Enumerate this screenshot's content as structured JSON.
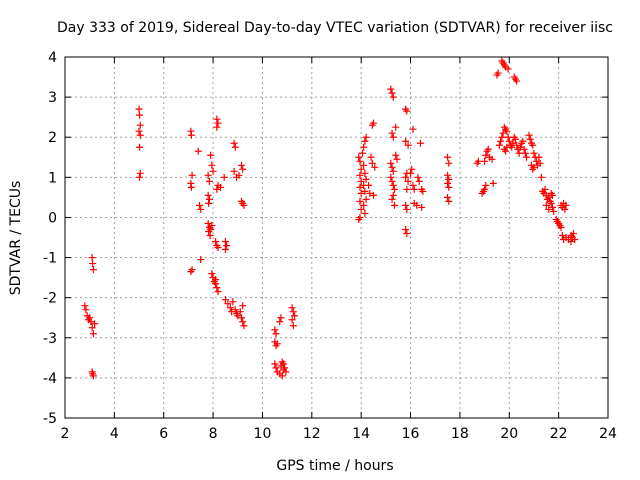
{
  "chart_data": {
    "type": "scatter",
    "title": "Day 333 of 2019, Sidereal Day-to-day VTEC variation (SDTVAR) for receiver iisc",
    "xlabel": "GPS time / hours",
    "ylabel": "SDTVAR / TECUs",
    "xlim": [
      2,
      24
    ],
    "ylim": [
      -5,
      4
    ],
    "xticks": [
      2,
      4,
      6,
      8,
      10,
      12,
      14,
      16,
      18,
      20,
      22,
      24
    ],
    "yticks": [
      -5,
      -4,
      -3,
      -2,
      -1,
      0,
      1,
      2,
      3,
      4
    ],
    "grid": true,
    "marker": "+",
    "series": [
      {
        "name": "SDTVAR",
        "color": "#ff0000",
        "points": [
          [
            2.8,
            -2.2
          ],
          [
            2.85,
            -2.3
          ],
          [
            2.9,
            -2.45
          ],
          [
            2.95,
            -2.55
          ],
          [
            3.0,
            -2.5
          ],
          [
            3.05,
            -2.6
          ],
          [
            3.1,
            -2.75
          ],
          [
            3.15,
            -2.9
          ],
          [
            3.2,
            -2.65
          ],
          [
            3.1,
            -1.0
          ],
          [
            3.12,
            -1.15
          ],
          [
            3.15,
            -1.3
          ],
          [
            3.1,
            -3.85
          ],
          [
            3.12,
            -3.9
          ],
          [
            3.15,
            -3.95
          ],
          [
            5.0,
            2.7
          ],
          [
            5.02,
            2.55
          ],
          [
            5.05,
            2.3
          ],
          [
            5.0,
            2.15
          ],
          [
            5.05,
            2.05
          ],
          [
            5.02,
            1.75
          ],
          [
            5.05,
            1.1
          ],
          [
            5.02,
            1.0
          ],
          [
            7.1,
            2.15
          ],
          [
            7.12,
            2.05
          ],
          [
            7.15,
            1.05
          ],
          [
            7.1,
            0.85
          ],
          [
            7.12,
            0.75
          ],
          [
            7.15,
            -1.3
          ],
          [
            7.1,
            -1.35
          ],
          [
            7.4,
            1.65
          ],
          [
            7.45,
            0.3
          ],
          [
            7.5,
            0.2
          ],
          [
            7.5,
            -1.05
          ],
          [
            7.8,
            1.05
          ],
          [
            7.85,
            0.9
          ],
          [
            7.8,
            0.55
          ],
          [
            7.85,
            0.45
          ],
          [
            7.82,
            0.35
          ],
          [
            7.8,
            -0.15
          ],
          [
            7.85,
            -0.25
          ],
          [
            7.82,
            -0.35
          ],
          [
            7.88,
            -0.45
          ],
          [
            7.9,
            -0.3
          ],
          [
            7.95,
            -0.2
          ],
          [
            7.9,
            1.55
          ],
          [
            7.95,
            1.3
          ],
          [
            8.0,
            1.15
          ],
          [
            7.95,
            -1.4
          ],
          [
            8.0,
            -1.5
          ],
          [
            8.05,
            -1.6
          ],
          [
            8.1,
            -0.6
          ],
          [
            8.15,
            -0.7
          ],
          [
            8.2,
            -0.75
          ],
          [
            8.1,
            -1.65
          ],
          [
            8.15,
            -1.75
          ],
          [
            8.2,
            -1.85
          ],
          [
            8.1,
            -1.55
          ],
          [
            8.15,
            2.45
          ],
          [
            8.2,
            2.35
          ],
          [
            8.15,
            2.25
          ],
          [
            8.2,
            0.8
          ],
          [
            8.15,
            0.7
          ],
          [
            8.3,
            0.75
          ],
          [
            8.45,
            1.0
          ],
          [
            8.5,
            -0.6
          ],
          [
            8.55,
            -0.7
          ],
          [
            8.5,
            -0.8
          ],
          [
            8.5,
            -2.05
          ],
          [
            8.6,
            -2.15
          ],
          [
            8.7,
            -2.25
          ],
          [
            8.75,
            -2.35
          ],
          [
            8.8,
            -2.1
          ],
          [
            8.85,
            1.85
          ],
          [
            8.9,
            1.75
          ],
          [
            8.85,
            1.15
          ],
          [
            8.95,
            1.0
          ],
          [
            9.05,
            1.05
          ],
          [
            8.9,
            -2.3
          ],
          [
            8.95,
            -2.4
          ],
          [
            9.0,
            -2.45
          ],
          [
            9.1,
            -2.35
          ],
          [
            9.15,
            -2.5
          ],
          [
            9.2,
            -2.6
          ],
          [
            9.25,
            -2.7
          ],
          [
            9.2,
            -2.2
          ],
          [
            9.15,
            1.3
          ],
          [
            9.2,
            1.2
          ],
          [
            9.15,
            0.4
          ],
          [
            9.2,
            0.35
          ],
          [
            9.25,
            0.3
          ],
          [
            10.5,
            -2.8
          ],
          [
            10.55,
            -2.9
          ],
          [
            10.5,
            -3.1
          ],
          [
            10.55,
            -3.2
          ],
          [
            10.6,
            -3.15
          ],
          [
            10.5,
            -3.65
          ],
          [
            10.55,
            -3.75
          ],
          [
            10.6,
            -3.85
          ],
          [
            10.7,
            -3.9
          ],
          [
            10.8,
            -3.95
          ],
          [
            10.85,
            -3.8
          ],
          [
            10.75,
            -3.7
          ],
          [
            10.9,
            -3.75
          ],
          [
            10.95,
            -3.85
          ],
          [
            10.7,
            -2.6
          ],
          [
            10.75,
            -2.5
          ],
          [
            10.8,
            -3.6
          ],
          [
            10.85,
            -3.65
          ],
          [
            11.2,
            -2.25
          ],
          [
            11.25,
            -2.35
          ],
          [
            11.3,
            -2.45
          ],
          [
            11.2,
            -2.55
          ],
          [
            11.25,
            -2.7
          ],
          [
            13.9,
            1.5
          ],
          [
            13.95,
            1.4
          ],
          [
            14.0,
            1.2
          ],
          [
            13.95,
            1.05
          ],
          [
            14.0,
            0.9
          ],
          [
            13.95,
            0.75
          ],
          [
            14.0,
            0.6
          ],
          [
            13.95,
            0.4
          ],
          [
            14.0,
            0.2
          ],
          [
            13.95,
            0.0
          ],
          [
            13.9,
            -0.05
          ],
          [
            14.05,
            1.6
          ],
          [
            14.1,
            1.75
          ],
          [
            14.15,
            1.9
          ],
          [
            14.2,
            2.0
          ],
          [
            14.1,
            1.3
          ],
          [
            14.15,
            1.1
          ],
          [
            14.2,
            0.95
          ],
          [
            14.1,
            0.8
          ],
          [
            14.15,
            0.65
          ],
          [
            14.2,
            0.45
          ],
          [
            14.1,
            0.3
          ],
          [
            14.15,
            0.1
          ],
          [
            14.3,
            0.8
          ],
          [
            14.35,
            0.6
          ],
          [
            14.4,
            1.5
          ],
          [
            14.45,
            1.35
          ],
          [
            14.5,
            2.35
          ],
          [
            14.45,
            2.3
          ],
          [
            14.55,
            1.25
          ],
          [
            14.5,
            0.55
          ],
          [
            15.2,
            3.2
          ],
          [
            15.25,
            3.1
          ],
          [
            15.3,
            3.0
          ],
          [
            15.25,
            2.1
          ],
          [
            15.3,
            2.0
          ],
          [
            15.2,
            1.35
          ],
          [
            15.25,
            1.25
          ],
          [
            15.3,
            1.15
          ],
          [
            15.2,
            1.0
          ],
          [
            15.25,
            0.9
          ],
          [
            15.3,
            0.8
          ],
          [
            15.35,
            0.7
          ],
          [
            15.3,
            0.55
          ],
          [
            15.25,
            0.45
          ],
          [
            15.35,
            0.3
          ],
          [
            15.4,
            1.55
          ],
          [
            15.45,
            1.45
          ],
          [
            15.4,
            2.25
          ],
          [
            15.8,
            2.7
          ],
          [
            15.85,
            2.65
          ],
          [
            15.8,
            1.9
          ],
          [
            15.9,
            1.8
          ],
          [
            15.85,
            1.1
          ],
          [
            15.8,
            1.0
          ],
          [
            15.9,
            0.9
          ],
          [
            15.85,
            0.7
          ],
          [
            15.8,
            0.3
          ],
          [
            15.85,
            0.2
          ],
          [
            15.8,
            -0.3
          ],
          [
            15.85,
            -0.4
          ],
          [
            16.0,
            1.1
          ],
          [
            16.05,
            1.2
          ],
          [
            16.1,
            2.2
          ],
          [
            16.1,
            0.8
          ],
          [
            16.15,
            0.7
          ],
          [
            16.15,
            0.35
          ],
          [
            16.25,
            0.3
          ],
          [
            16.3,
            1.0
          ],
          [
            16.35,
            0.9
          ],
          [
            16.4,
            1.85
          ],
          [
            16.45,
            0.7
          ],
          [
            16.5,
            0.65
          ],
          [
            16.45,
            0.25
          ],
          [
            17.5,
            1.5
          ],
          [
            17.55,
            1.35
          ],
          [
            17.5,
            1.05
          ],
          [
            17.55,
            0.95
          ],
          [
            17.5,
            0.85
          ],
          [
            17.55,
            0.75
          ],
          [
            17.5,
            0.5
          ],
          [
            17.55,
            0.4
          ],
          [
            18.7,
            1.35
          ],
          [
            18.75,
            1.4
          ],
          [
            18.9,
            0.6
          ],
          [
            18.95,
            0.65
          ],
          [
            19.0,
            0.7
          ],
          [
            19.05,
            0.8
          ],
          [
            19.0,
            1.4
          ],
          [
            19.05,
            1.55
          ],
          [
            19.1,
            1.65
          ],
          [
            19.15,
            1.7
          ],
          [
            19.2,
            1.5
          ],
          [
            19.3,
            1.45
          ],
          [
            19.35,
            0.85
          ],
          [
            19.5,
            3.55
          ],
          [
            19.55,
            3.6
          ],
          [
            19.6,
            1.8
          ],
          [
            19.65,
            1.9
          ],
          [
            19.7,
            2.0
          ],
          [
            19.75,
            2.1
          ],
          [
            19.8,
            2.25
          ],
          [
            19.85,
            2.2
          ],
          [
            19.9,
            2.15
          ],
          [
            19.95,
            2.0
          ],
          [
            19.8,
            1.7
          ],
          [
            19.85,
            1.65
          ],
          [
            19.9,
            1.75
          ],
          [
            19.7,
            3.9
          ],
          [
            19.75,
            3.85
          ],
          [
            19.8,
            3.8
          ],
          [
            19.85,
            3.75
          ],
          [
            19.95,
            3.7
          ],
          [
            20.0,
            1.9
          ],
          [
            20.05,
            1.8
          ],
          [
            20.1,
            1.75
          ],
          [
            20.15,
            1.85
          ],
          [
            20.2,
            2.0
          ],
          [
            20.25,
            1.95
          ],
          [
            20.3,
            1.8
          ],
          [
            20.35,
            1.7
          ],
          [
            20.4,
            1.6
          ],
          [
            20.45,
            1.75
          ],
          [
            20.5,
            1.85
          ],
          [
            20.55,
            1.9
          ],
          [
            20.2,
            3.5
          ],
          [
            20.25,
            3.45
          ],
          [
            20.3,
            3.4
          ],
          [
            20.6,
            1.7
          ],
          [
            20.65,
            1.6
          ],
          [
            20.7,
            1.5
          ],
          [
            20.8,
            2.05
          ],
          [
            20.85,
            1.95
          ],
          [
            20.9,
            1.85
          ],
          [
            20.95,
            1.8
          ],
          [
            21.0,
            1.6
          ],
          [
            21.05,
            1.5
          ],
          [
            21.1,
            1.4
          ],
          [
            21.15,
            1.3
          ],
          [
            20.9,
            1.3
          ],
          [
            20.95,
            1.2
          ],
          [
            21.0,
            1.25
          ],
          [
            21.2,
            1.5
          ],
          [
            21.25,
            1.35
          ],
          [
            21.3,
            1.0
          ],
          [
            21.35,
            0.65
          ],
          [
            21.4,
            0.6
          ],
          [
            21.45,
            0.7
          ],
          [
            21.5,
            0.55
          ],
          [
            21.55,
            0.45
          ],
          [
            21.6,
            0.5
          ],
          [
            21.65,
            0.4
          ],
          [
            21.7,
            0.35
          ],
          [
            21.75,
            0.25
          ],
          [
            21.8,
            0.15
          ],
          [
            21.5,
            0.3
          ],
          [
            21.6,
            0.2
          ],
          [
            21.7,
            0.6
          ],
          [
            21.75,
            0.55
          ],
          [
            22.1,
            0.3
          ],
          [
            22.15,
            0.25
          ],
          [
            22.2,
            0.35
          ],
          [
            22.25,
            0.2
          ],
          [
            22.3,
            0.3
          ],
          [
            21.9,
            -0.05
          ],
          [
            21.95,
            -0.1
          ],
          [
            22.0,
            -0.15
          ],
          [
            22.05,
            -0.2
          ],
          [
            22.1,
            -0.25
          ],
          [
            22.15,
            -0.45
          ],
          [
            22.2,
            -0.55
          ],
          [
            22.3,
            -0.5
          ],
          [
            22.4,
            -0.55
          ],
          [
            22.5,
            -0.6
          ],
          [
            22.55,
            -0.5
          ],
          [
            22.6,
            -0.4
          ],
          [
            22.65,
            -0.55
          ],
          [
            22.5,
            -0.45
          ]
        ]
      }
    ]
  }
}
